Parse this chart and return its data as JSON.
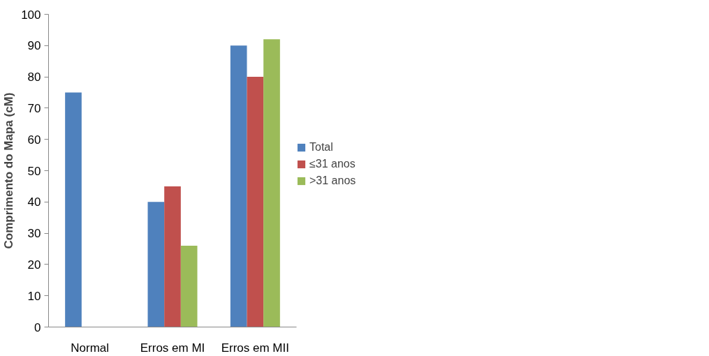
{
  "chart_data": {
    "type": "bar",
    "ylabel": "Comprimento do Mapa (cM)",
    "categories": [
      "Normal",
      "Erros em MI",
      "Erros em MII"
    ],
    "series": [
      {
        "name": "Total",
        "color": "#4f81bd",
        "values": [
          75,
          40,
          90
        ]
      },
      {
        "name": "≤31 anos",
        "color": "#c0504d",
        "values": [
          null,
          45,
          80
        ]
      },
      {
        "name": ">31 anos",
        "color": "#9bbb59",
        "values": [
          null,
          26,
          92
        ]
      }
    ],
    "ylim": [
      0,
      100
    ],
    "yticks": [
      0,
      10,
      20,
      30,
      40,
      50,
      60,
      70,
      80,
      90,
      100
    ],
    "grid": false,
    "legend": "right"
  }
}
